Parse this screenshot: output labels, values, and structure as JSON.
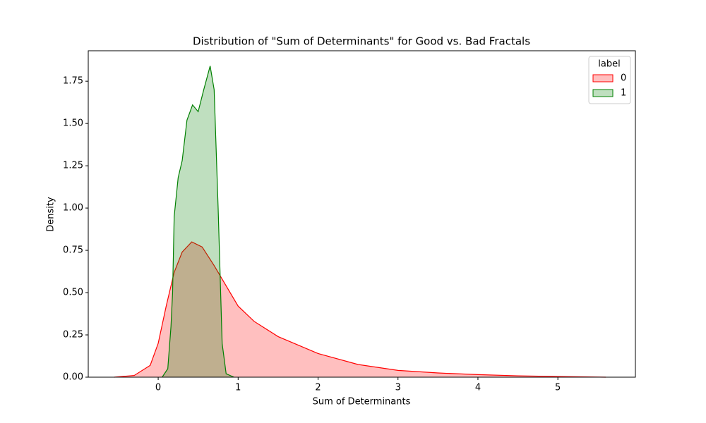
{
  "chart_data": {
    "type": "area",
    "title": "Distribution of \"Sum of Determinants\" for Good vs. Bad Fractals",
    "xlabel": "Sum of Determinants",
    "ylabel": "Density",
    "legend_title": "label",
    "legend": "upper right",
    "xlim": [
      -0.875,
      5.97
    ],
    "ylim": [
      0,
      1.93
    ],
    "xticks": [
      0,
      1,
      2,
      3,
      4,
      5
    ],
    "yticks": [
      {
        "value": 0,
        "label": "0.00"
      },
      {
        "value": 0.25,
        "label": "0.25"
      },
      {
        "value": 0.5,
        "label": "0.50"
      },
      {
        "value": 0.75,
        "label": "0.75"
      },
      {
        "value": 1,
        "label": "1.00"
      },
      {
        "value": 1.25,
        "label": "1.25"
      },
      {
        "value": 1.5,
        "label": "1.50"
      },
      {
        "value": 1.75,
        "label": "1.75"
      }
    ],
    "series": [
      {
        "name": "0",
        "color": "#ff0000",
        "x": [
          -0.55,
          -0.3,
          -0.1,
          0,
          0.1,
          0.2,
          0.3,
          0.42,
          0.55,
          0.7,
          0.85,
          1.0,
          1.2,
          1.5,
          2.0,
          2.5,
          3.0,
          3.5,
          4.0,
          4.5,
          5.0,
          5.6
        ],
        "values": [
          0,
          0.01,
          0.07,
          0.2,
          0.42,
          0.62,
          0.74,
          0.8,
          0.77,
          0.66,
          0.54,
          0.42,
          0.33,
          0.24,
          0.14,
          0.075,
          0.04,
          0.025,
          0.015,
          0.008,
          0.004,
          0
        ]
      },
      {
        "name": "1",
        "color": "#008000",
        "x": [
          0.05,
          0.12,
          0.16,
          0.18,
          0.2,
          0.25,
          0.3,
          0.36,
          0.43,
          0.5,
          0.57,
          0.65,
          0.7,
          0.75,
          0.8,
          0.85,
          0.95
        ],
        "values": [
          0,
          0.05,
          0.3,
          0.5,
          0.95,
          1.18,
          1.28,
          1.52,
          1.61,
          1.57,
          1.7,
          1.84,
          1.7,
          1.0,
          0.2,
          0.02,
          0
        ]
      }
    ]
  }
}
